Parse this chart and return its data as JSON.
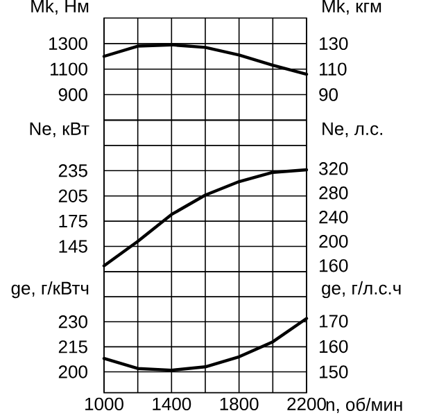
{
  "chart_data": [
    {
      "type": "line",
      "ylabel": "Mk, Нм",
      "y2label": "Mk, кгм",
      "categories": [
        null,
        null,
        null,
        null,
        null,
        null,
        null
      ],
      "series": [
        {
          "color": "#000000",
          "values": [
            1200,
            1280,
            1290,
            1270,
            1210,
            1130,
            1060
          ]
        }
      ],
      "ylim": [
        700,
        1500
      ],
      "yticks": [
        900,
        1100,
        1300
      ],
      "y2lim": [
        70,
        150
      ],
      "y2ticks": [
        90,
        110,
        130
      ],
      "grid": true,
      "tick_labels": [
        "y",
        "y2"
      ]
    },
    {
      "type": "line",
      "ylabel": "Ne, кВт",
      "y2label": "Ne, л.с.",
      "categories": [
        null,
        null,
        null,
        null,
        null,
        null,
        null
      ],
      "series": [
        {
          "color": "#000000",
          "values": [
            122,
            151,
            183,
            206,
            222,
            233,
            236
          ]
        }
      ],
      "ylim": [
        115,
        295
      ],
      "yticks": [
        145,
        175,
        205,
        235,
        {
          "value": 265,
          "label": null
        }
      ],
      "y2lim": [
        160,
        400
      ],
      "y2ticks": [
        160,
        200,
        240,
        280,
        320
      ],
      "grid": true,
      "tick_labels": [
        "y",
        "y2"
      ]
    },
    {
      "type": "line",
      "ylabel": "ge, г/кВтч",
      "y2label": "ge, г/л.с.ч",
      "xlabel": "n, об/мин",
      "x": [
        1000,
        1200,
        1400,
        1600,
        1800,
        2000,
        2200
      ],
      "series": [
        {
          "color": "#000000",
          "values": [
            208,
            202,
            201,
            203,
            209,
            218,
            232
          ]
        }
      ],
      "xlim": [
        1000,
        2200
      ],
      "xticks": [
        1000,
        {
          "value": 1200,
          "label": null
        },
        1400,
        {
          "value": 1600,
          "label": null
        },
        1800,
        {
          "value": 2000,
          "label": null
        },
        2200
      ],
      "ylim": [
        187.5,
        260
      ],
      "yticks": [
        200,
        215,
        230,
        {
          "value": 245,
          "label": null
        }
      ],
      "y2lim": [
        141.8,
        189.5
      ],
      "y2ticks": [
        150,
        160,
        170
      ],
      "grid": true
    }
  ]
}
